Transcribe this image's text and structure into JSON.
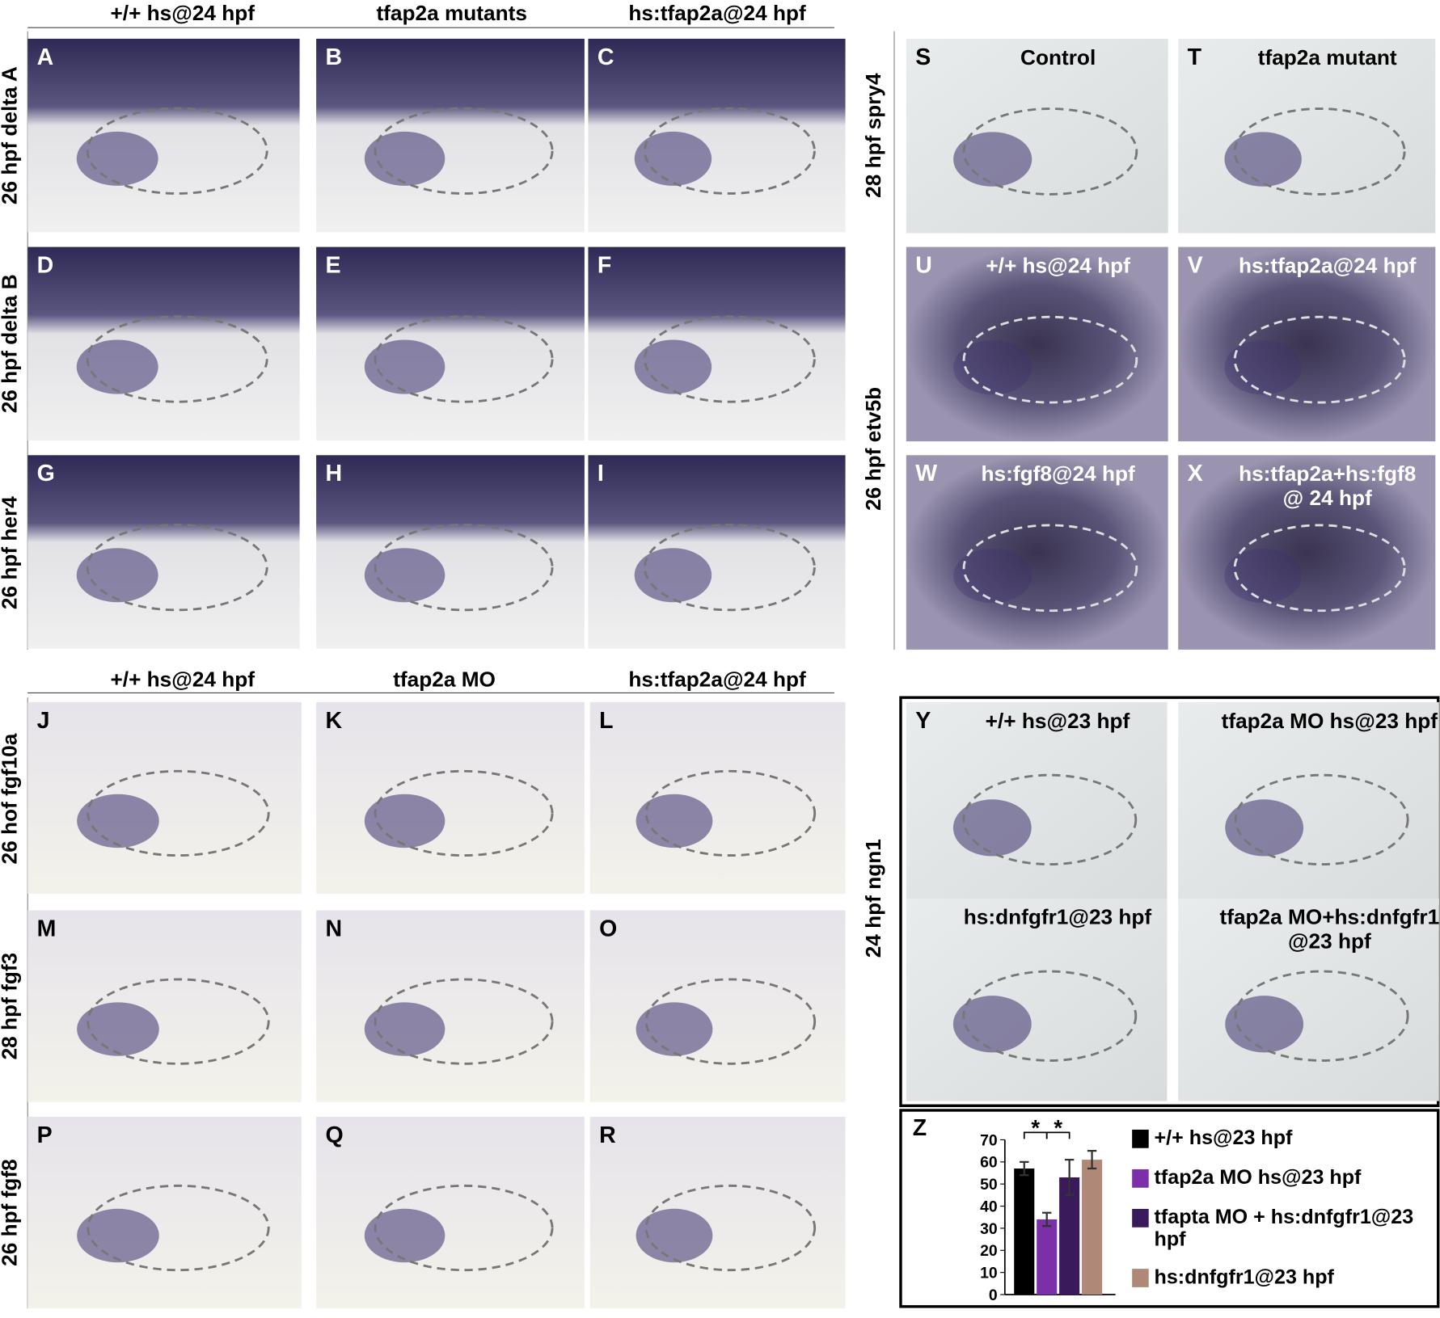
{
  "column_headers_top": [
    "+/+ hs@24 hpf",
    "tfap2a mutants",
    "hs:tfap2a@24 hpf"
  ],
  "column_headers_bottom": [
    "+/+ hs@24 hpf",
    "tfap2a MO",
    "hs:tfap2a@24 hpf"
  ],
  "row_labels": [
    "26 hpf delta A",
    "26 hpf delta B",
    "26 hpf her4",
    "28 hpf spry4",
    "26 hpf etv5b",
    "26 hof fgf10a",
    "28 hpf fgf3",
    "26 hpf fgf8",
    "24 hpf ngn1"
  ],
  "panels": [
    {
      "letter": "A"
    },
    {
      "letter": "B"
    },
    {
      "letter": "C"
    },
    {
      "letter": "D"
    },
    {
      "letter": "E"
    },
    {
      "letter": "F"
    },
    {
      "letter": "G"
    },
    {
      "letter": "H"
    },
    {
      "letter": "I"
    },
    {
      "letter": "S",
      "caption": [
        "Control"
      ]
    },
    {
      "letter": "T",
      "caption": [
        "tfap2a mutant"
      ]
    },
    {
      "letter": "U",
      "caption": [
        "+/+ hs@24 hpf"
      ]
    },
    {
      "letter": "V",
      "caption": [
        "hs:tfap2a@24 hpf"
      ]
    },
    {
      "letter": "W",
      "caption": [
        "hs:fgf8@24 hpf"
      ]
    },
    {
      "letter": "X",
      "caption": [
        "hs:tfap2a+hs:fgf8",
        "@ 24 hpf"
      ]
    },
    {
      "letter": "J"
    },
    {
      "letter": "K"
    },
    {
      "letter": "L"
    },
    {
      "letter": "M"
    },
    {
      "letter": "N"
    },
    {
      "letter": "O"
    },
    {
      "letter": "P"
    },
    {
      "letter": "Q"
    },
    {
      "letter": "R"
    },
    {
      "letter": "Y",
      "caption": [
        "+/+ hs@23 hpf"
      ]
    },
    {
      "caption": [
        "tfap2a MO hs@23 hpf"
      ]
    },
    {
      "caption": [
        "hs:dnfgfr1@23 hpf"
      ]
    },
    {
      "caption": [
        "tfap2a MO+hs:dnfgfr1",
        "@23 hpf"
      ]
    }
  ],
  "chart_data": {
    "type": "bar",
    "letter": "Z",
    "ylim": [
      0,
      70
    ],
    "yticks": [
      0,
      10,
      20,
      30,
      40,
      50,
      60,
      70
    ],
    "annotations": [
      "*",
      "*"
    ],
    "series": [
      {
        "name": "+/+ hs@23 hpf",
        "color": "#000000",
        "values": [
          57
        ],
        "errors": [
          3
        ]
      },
      {
        "name": "tfap2a MO hs@23 hpf",
        "color": "#7b2fa8",
        "values": [
          34
        ],
        "errors": [
          3
        ]
      },
      {
        "name": "tfapta MO + hs:dnfgfr1@23 hpf",
        "color": "#3b1a5c",
        "values": [
          53
        ],
        "errors": [
          8
        ]
      },
      {
        "name": "hs:dnfgfr1@23 hpf",
        "color": "#b08878",
        "values": [
          61
        ],
        "errors": [
          4
        ]
      }
    ]
  }
}
